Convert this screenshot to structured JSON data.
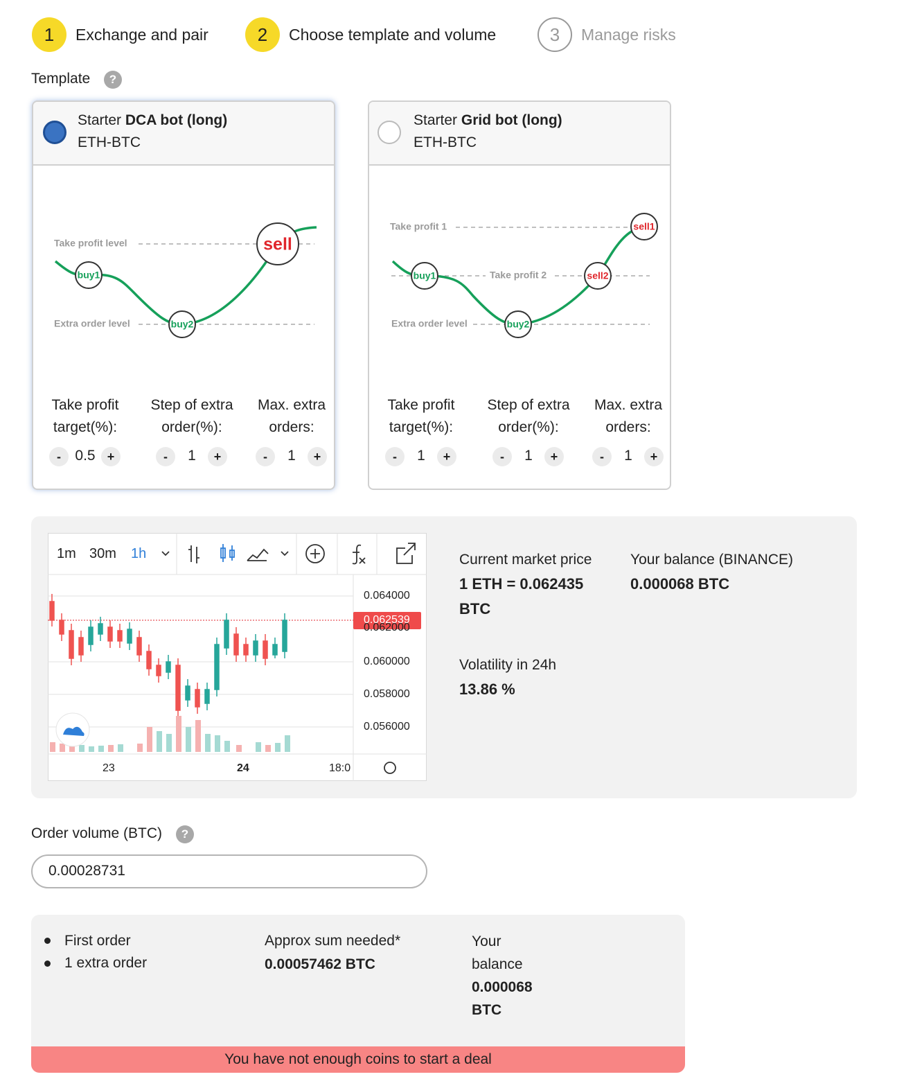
{
  "steps": [
    {
      "number": "1",
      "label": "Exchange and pair"
    },
    {
      "number": "2",
      "label": "Choose template and volume"
    },
    {
      "number": "3",
      "label": "Manage risks"
    }
  ],
  "template_section": {
    "label": "Template",
    "help": "?"
  },
  "templates": [
    {
      "prefix": "Starter",
      "name": "DCA bot (long)",
      "pair": "ETH-BTC",
      "diagram": {
        "take_profit": "Take profit level",
        "extra_order": "Extra order level",
        "markers": [
          "buy1",
          "buy2",
          "sell"
        ]
      },
      "params": [
        {
          "label": "Take profit target(%):",
          "value": "0.5"
        },
        {
          "label": "Step of extra order(%):",
          "value": "1"
        },
        {
          "label": "Max. extra orders:",
          "value": "1"
        }
      ]
    },
    {
      "prefix": "Starter",
      "name": "Grid bot (long)",
      "pair": "ETH-BTC",
      "diagram": {
        "take_profit_1": "Take profit 1",
        "take_profit_2": "Take profit 2",
        "extra_order": "Extra order level",
        "markers": [
          "buy1",
          "buy2",
          "sell2",
          "sell1"
        ]
      },
      "params": [
        {
          "label": "Take profit target(%):",
          "value": "1"
        },
        {
          "label": "Step of extra order(%):",
          "value": "1"
        },
        {
          "label": "Max. extra orders:",
          "value": "1"
        }
      ]
    }
  ],
  "controls": {
    "minus": "-",
    "plus": "+"
  },
  "price_chart": {
    "intervals": [
      "1m",
      "30m",
      "1h"
    ],
    "price_labels": [
      "0.064000",
      "0.062000",
      "0.060000",
      "0.058000",
      "0.056000"
    ],
    "current_price": "0.062539",
    "time_labels": [
      "23",
      "24",
      "18:0"
    ]
  },
  "market": {
    "price_label": "Current market price",
    "price": "1 ETH = 0.062435 BTC",
    "balance_label": "Your balance (BINANCE)",
    "balance": "0.000068 BTC",
    "volatility_label": "Volatility in 24h",
    "volatility": "13.86 %"
  },
  "order_volume": {
    "label": "Order volume (BTC)",
    "help": "?",
    "value": "0.00028731"
  },
  "summary": {
    "orders": [
      "First order",
      "1 extra order"
    ],
    "sum_label": "Approx sum needed*",
    "sum": "0.00057462 BTC",
    "balance_label": "Your balance",
    "balance": "0.000068 BTC",
    "warning": "You have not enough coins to start a deal"
  }
}
